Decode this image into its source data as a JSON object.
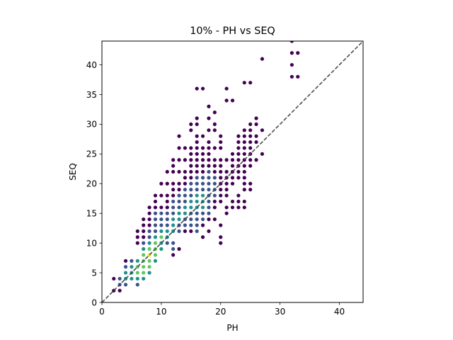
{
  "chart_data": {
    "type": "scatter",
    "title": "10% - PH vs SEQ",
    "xlabel": "PH",
    "ylabel": "SEQ",
    "xlim": [
      0,
      44
    ],
    "ylim": [
      0,
      44
    ],
    "x_ticks": [
      "0",
      "10",
      "20",
      "30",
      "40"
    ],
    "y_ticks": [
      "0",
      "5",
      "10",
      "15",
      "20",
      "25",
      "30",
      "35",
      "40"
    ],
    "grid": false,
    "legend": "none",
    "reference_line": {
      "style": "dashed",
      "color": "#444444",
      "from": [
        0,
        0
      ],
      "to": [
        44,
        44
      ]
    },
    "colormap": [
      "#440154",
      "#3b528b",
      "#21918c",
      "#5ec962",
      "#fde725"
    ],
    "density_levels_note": "",
    "points": [
      [
        2,
        2,
        0
      ],
      [
        2,
        4,
        0
      ],
      [
        3,
        2,
        0
      ],
      [
        3,
        3,
        1
      ],
      [
        3,
        4,
        1
      ],
      [
        4,
        3,
        1
      ],
      [
        4,
        4,
        2
      ],
      [
        4,
        5,
        2
      ],
      [
        4,
        6,
        1
      ],
      [
        4,
        7,
        0
      ],
      [
        5,
        4,
        2
      ],
      [
        5,
        5,
        2
      ],
      [
        5,
        6,
        2
      ],
      [
        5,
        7,
        1
      ],
      [
        6,
        3,
        1
      ],
      [
        6,
        4,
        2
      ],
      [
        6,
        5,
        3
      ],
      [
        6,
        6,
        3
      ],
      [
        6,
        7,
        2
      ],
      [
        6,
        10,
        0
      ],
      [
        6,
        11,
        0
      ],
      [
        6,
        12,
        0
      ],
      [
        7,
        4,
        2
      ],
      [
        7,
        5,
        3
      ],
      [
        7,
        6,
        3
      ],
      [
        7,
        7,
        3
      ],
      [
        7,
        8,
        3
      ],
      [
        7,
        9,
        2
      ],
      [
        7,
        10,
        1
      ],
      [
        7,
        11,
        0
      ],
      [
        7,
        12,
        0
      ],
      [
        7,
        13,
        0
      ],
      [
        7,
        14,
        0
      ],
      [
        8,
        5,
        2
      ],
      [
        8,
        6,
        3
      ],
      [
        8,
        7,
        3
      ],
      [
        8,
        8,
        4
      ],
      [
        8,
        9,
        3
      ],
      [
        8,
        10,
        2
      ],
      [
        8,
        11,
        1
      ],
      [
        8,
        12,
        1
      ],
      [
        8,
        13,
        0
      ],
      [
        8,
        14,
        0
      ],
      [
        8,
        15,
        0
      ],
      [
        8,
        16,
        0
      ],
      [
        9,
        7,
        2
      ],
      [
        9,
        8,
        3
      ],
      [
        9,
        9,
        3
      ],
      [
        9,
        10,
        3
      ],
      [
        9,
        11,
        2
      ],
      [
        9,
        12,
        1
      ],
      [
        9,
        13,
        1
      ],
      [
        9,
        14,
        1
      ],
      [
        9,
        15,
        1
      ],
      [
        9,
        16,
        0
      ],
      [
        9,
        17,
        0
      ],
      [
        9,
        18,
        0
      ],
      [
        10,
        9,
        2
      ],
      [
        10,
        10,
        2
      ],
      [
        10,
        11,
        3
      ],
      [
        10,
        12,
        2
      ],
      [
        10,
        13,
        1
      ],
      [
        10,
        14,
        1
      ],
      [
        10,
        15,
        1
      ],
      [
        10,
        16,
        0
      ],
      [
        10,
        18,
        0
      ],
      [
        10,
        20,
        0
      ],
      [
        11,
        10,
        1
      ],
      [
        11,
        11,
        2
      ],
      [
        11,
        12,
        2
      ],
      [
        11,
        13,
        1
      ],
      [
        11,
        14,
        1
      ],
      [
        11,
        15,
        1
      ],
      [
        11,
        16,
        0
      ],
      [
        11,
        17,
        0
      ],
      [
        11,
        18,
        0
      ],
      [
        11,
        20,
        0
      ],
      [
        11,
        22,
        0
      ],
      [
        12,
        8,
        0
      ],
      [
        12,
        9,
        1
      ],
      [
        12,
        10,
        1
      ],
      [
        12,
        12,
        2
      ],
      [
        12,
        13,
        2
      ],
      [
        12,
        14,
        2
      ],
      [
        12,
        15,
        1
      ],
      [
        12,
        16,
        1
      ],
      [
        12,
        17,
        1
      ],
      [
        12,
        18,
        0
      ],
      [
        12,
        19,
        0
      ],
      [
        12,
        20,
        0
      ],
      [
        12,
        22,
        0
      ],
      [
        12,
        23,
        0
      ],
      [
        12,
        24,
        0
      ],
      [
        13,
        9,
        0
      ],
      [
        13,
        12,
        1
      ],
      [
        13,
        13,
        1
      ],
      [
        13,
        14,
        2
      ],
      [
        13,
        15,
        2
      ],
      [
        13,
        16,
        1
      ],
      [
        13,
        17,
        1
      ],
      [
        13,
        18,
        1
      ],
      [
        13,
        19,
        0
      ],
      [
        13,
        20,
        0
      ],
      [
        13,
        22,
        0
      ],
      [
        13,
        24,
        0
      ],
      [
        13,
        26,
        0
      ],
      [
        13,
        28,
        0
      ],
      [
        14,
        12,
        0
      ],
      [
        14,
        13,
        1
      ],
      [
        14,
        14,
        1
      ],
      [
        14,
        15,
        2
      ],
      [
        14,
        16,
        2
      ],
      [
        14,
        17,
        1
      ],
      [
        14,
        18,
        1
      ],
      [
        14,
        19,
        1
      ],
      [
        14,
        20,
        0
      ],
      [
        14,
        21,
        0
      ],
      [
        14,
        22,
        0
      ],
      [
        14,
        24,
        0
      ],
      [
        14,
        26,
        0
      ],
      [
        15,
        12,
        0
      ],
      [
        15,
        13,
        1
      ],
      [
        15,
        14,
        1
      ],
      [
        15,
        15,
        1
      ],
      [
        15,
        16,
        2
      ],
      [
        15,
        17,
        2
      ],
      [
        15,
        18,
        1
      ],
      [
        15,
        19,
        1
      ],
      [
        15,
        20,
        1
      ],
      [
        15,
        21,
        0
      ],
      [
        15,
        22,
        0
      ],
      [
        15,
        23,
        0
      ],
      [
        15,
        24,
        0
      ],
      [
        15,
        25,
        0
      ],
      [
        15,
        26,
        0
      ],
      [
        15,
        29,
        0
      ],
      [
        15,
        30,
        0
      ],
      [
        16,
        12,
        1
      ],
      [
        16,
        13,
        1
      ],
      [
        16,
        14,
        1
      ],
      [
        16,
        15,
        1
      ],
      [
        16,
        16,
        2
      ],
      [
        16,
        17,
        2
      ],
      [
        16,
        18,
        2
      ],
      [
        16,
        19,
        1
      ],
      [
        16,
        20,
        1
      ],
      [
        16,
        21,
        1
      ],
      [
        16,
        22,
        0
      ],
      [
        16,
        23,
        0
      ],
      [
        16,
        24,
        0
      ],
      [
        16,
        25,
        0
      ],
      [
        16,
        26,
        0
      ],
      [
        16,
        27,
        0
      ],
      [
        16,
        28,
        0
      ],
      [
        16,
        30,
        0
      ],
      [
        16,
        31,
        0
      ],
      [
        16,
        36,
        0
      ],
      [
        17,
        11,
        0
      ],
      [
        17,
        13,
        0
      ],
      [
        17,
        14,
        1
      ],
      [
        17,
        15,
        1
      ],
      [
        17,
        16,
        2
      ],
      [
        17,
        17,
        2
      ],
      [
        17,
        18,
        2
      ],
      [
        17,
        19,
        1
      ],
      [
        17,
        20,
        1
      ],
      [
        17,
        21,
        1
      ],
      [
        17,
        22,
        0
      ],
      [
        17,
        23,
        0
      ],
      [
        17,
        24,
        0
      ],
      [
        17,
        25,
        0
      ],
      [
        17,
        26,
        0
      ],
      [
        17,
        28,
        0
      ],
      [
        17,
        36,
        0
      ],
      [
        18,
        12,
        0
      ],
      [
        18,
        14,
        0
      ],
      [
        18,
        15,
        1
      ],
      [
        18,
        16,
        1
      ],
      [
        18,
        17,
        1
      ],
      [
        18,
        18,
        1
      ],
      [
        18,
        19,
        1
      ],
      [
        18,
        20,
        1
      ],
      [
        18,
        21,
        1
      ],
      [
        18,
        22,
        1
      ],
      [
        18,
        23,
        0
      ],
      [
        18,
        24,
        0
      ],
      [
        18,
        25,
        0
      ],
      [
        18,
        26,
        0
      ],
      [
        18,
        27,
        0
      ],
      [
        18,
        29,
        0
      ],
      [
        18,
        31,
        0
      ],
      [
        18,
        33,
        0
      ],
      [
        19,
        14,
        0
      ],
      [
        19,
        16,
        0
      ],
      [
        19,
        17,
        0
      ],
      [
        19,
        18,
        1
      ],
      [
        19,
        19,
        1
      ],
      [
        19,
        20,
        1
      ],
      [
        19,
        21,
        1
      ],
      [
        19,
        22,
        0
      ],
      [
        19,
        23,
        0
      ],
      [
        19,
        24,
        0
      ],
      [
        19,
        26,
        0
      ],
      [
        19,
        29,
        0
      ],
      [
        19,
        30,
        0
      ],
      [
        19,
        32,
        0
      ],
      [
        20,
        10,
        0
      ],
      [
        20,
        11,
        0
      ],
      [
        20,
        13,
        0
      ],
      [
        20,
        17,
        0
      ],
      [
        20,
        18,
        0
      ],
      [
        20,
        19,
        0
      ],
      [
        20,
        20,
        0
      ],
      [
        20,
        21,
        0
      ],
      [
        20,
        22,
        0
      ],
      [
        20,
        23,
        0
      ],
      [
        20,
        24,
        0
      ],
      [
        20,
        26,
        0
      ],
      [
        20,
        27,
        0
      ],
      [
        20,
        28,
        0
      ],
      [
        21,
        15,
        0
      ],
      [
        21,
        16,
        0
      ],
      [
        21,
        18,
        0
      ],
      [
        21,
        19,
        0
      ],
      [
        21,
        20,
        0
      ],
      [
        21,
        21,
        0
      ],
      [
        21,
        22,
        0
      ],
      [
        21,
        24,
        0
      ],
      [
        21,
        34,
        0
      ],
      [
        21,
        36,
        0
      ],
      [
        22,
        16,
        0
      ],
      [
        22,
        17,
        0
      ],
      [
        22,
        20,
        0
      ],
      [
        22,
        21,
        0
      ],
      [
        22,
        22,
        0
      ],
      [
        22,
        23,
        0
      ],
      [
        22,
        24,
        0
      ],
      [
        22,
        25,
        0
      ],
      [
        22,
        34,
        0
      ],
      [
        23,
        16,
        0
      ],
      [
        23,
        17,
        0
      ],
      [
        23,
        18,
        0
      ],
      [
        23,
        21,
        0
      ],
      [
        23,
        22,
        0
      ],
      [
        23,
        23,
        0
      ],
      [
        23,
        24,
        0
      ],
      [
        23,
        25,
        0
      ],
      [
        23,
        26,
        0
      ],
      [
        23,
        27,
        0
      ],
      [
        23,
        28,
        0
      ],
      [
        24,
        16,
        0
      ],
      [
        24,
        17,
        0
      ],
      [
        24,
        19,
        0
      ],
      [
        24,
        20,
        0
      ],
      [
        24,
        21,
        0
      ],
      [
        24,
        22,
        0
      ],
      [
        24,
        23,
        0
      ],
      [
        24,
        24,
        0
      ],
      [
        24,
        25,
        0
      ],
      [
        24,
        26,
        0
      ],
      [
        24,
        27,
        0
      ],
      [
        24,
        28,
        0
      ],
      [
        24,
        29,
        0
      ],
      [
        24,
        37,
        0
      ],
      [
        25,
        19,
        0
      ],
      [
        25,
        20,
        0
      ],
      [
        25,
        23,
        0
      ],
      [
        25,
        24,
        0
      ],
      [
        25,
        25,
        0
      ],
      [
        25,
        26,
        0
      ],
      [
        25,
        27,
        0
      ],
      [
        25,
        28,
        0
      ],
      [
        25,
        29,
        0
      ],
      [
        25,
        30,
        0
      ],
      [
        25,
        37,
        0
      ],
      [
        26,
        24,
        0
      ],
      [
        26,
        27,
        0
      ],
      [
        26,
        28,
        0
      ],
      [
        26,
        30,
        0
      ],
      [
        26,
        31,
        0
      ],
      [
        27,
        25,
        0
      ],
      [
        27,
        29,
        0
      ],
      [
        27,
        41,
        0
      ],
      [
        32,
        38,
        0
      ],
      [
        32,
        40,
        0
      ],
      [
        32,
        42,
        0
      ],
      [
        32,
        44,
        0
      ],
      [
        33,
        38,
        0
      ],
      [
        33,
        42,
        0
      ]
    ]
  }
}
